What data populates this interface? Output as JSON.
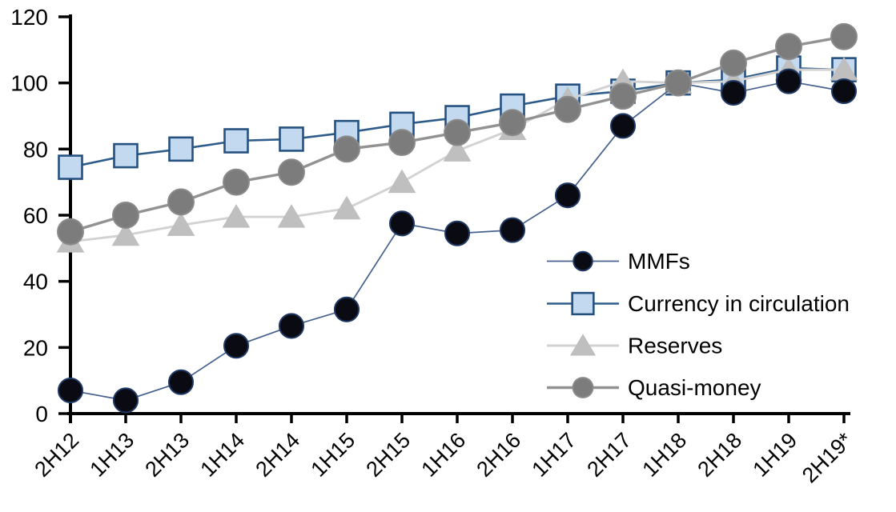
{
  "chart_data": {
    "type": "line",
    "title": "",
    "xlabel": "",
    "ylabel": "",
    "ylim": [
      0,
      120
    ],
    "y_ticks": [
      0,
      20,
      40,
      60,
      80,
      100,
      120
    ],
    "grid": false,
    "legend_position": "inside-right",
    "categories": [
      "2H12",
      "1H13",
      "2H13",
      "1H14",
      "2H14",
      "1H15",
      "2H15",
      "1H16",
      "2H16",
      "1H17",
      "2H17",
      "1H18",
      "2H18",
      "1H19",
      "2H19*"
    ],
    "series": [
      {
        "name": "MMFs",
        "marker": "circle",
        "values": [
          7,
          4,
          9.5,
          20.5,
          26.5,
          31.5,
          57.5,
          54.5,
          55.5,
          66,
          87,
          100,
          97,
          100.5,
          97.5
        ],
        "color": {
          "line": "#46618E",
          "fill": "#0A0A12",
          "stroke": "#1F3864"
        }
      },
      {
        "name": "Currency in circulation",
        "marker": "square",
        "values": [
          74.5,
          78,
          80,
          82.5,
          83,
          85,
          87.5,
          89.5,
          93,
          96,
          97.5,
          100,
          101,
          104.5,
          104
        ],
        "color": {
          "line": "#2E5C8A",
          "fill": "#C3D9EF",
          "stroke": "#255180"
        }
      },
      {
        "name": "Reserves",
        "marker": "triangle",
        "values": [
          52,
          54,
          57,
          59.5,
          59.5,
          62,
          70,
          79.5,
          86,
          95,
          100.5,
          100,
          100.5,
          104,
          104
        ],
        "color": {
          "line": "#D2D2D2",
          "fill": "#BFBFBF",
          "stroke": "#BDBDBD"
        }
      },
      {
        "name": "Quasi-money",
        "marker": "circle",
        "values": [
          55,
          60,
          64,
          70,
          73,
          80,
          82,
          85,
          88,
          92,
          96,
          100,
          106,
          111,
          114
        ],
        "color": {
          "line": "#929292",
          "fill": "#7C7C7C",
          "stroke": "#8A8A8A"
        }
      }
    ]
  },
  "axis_color": "#000000",
  "legend": {
    "labels": [
      "MMFs",
      "Currency in circulation",
      "Reserves",
      "Quasi-money"
    ]
  }
}
